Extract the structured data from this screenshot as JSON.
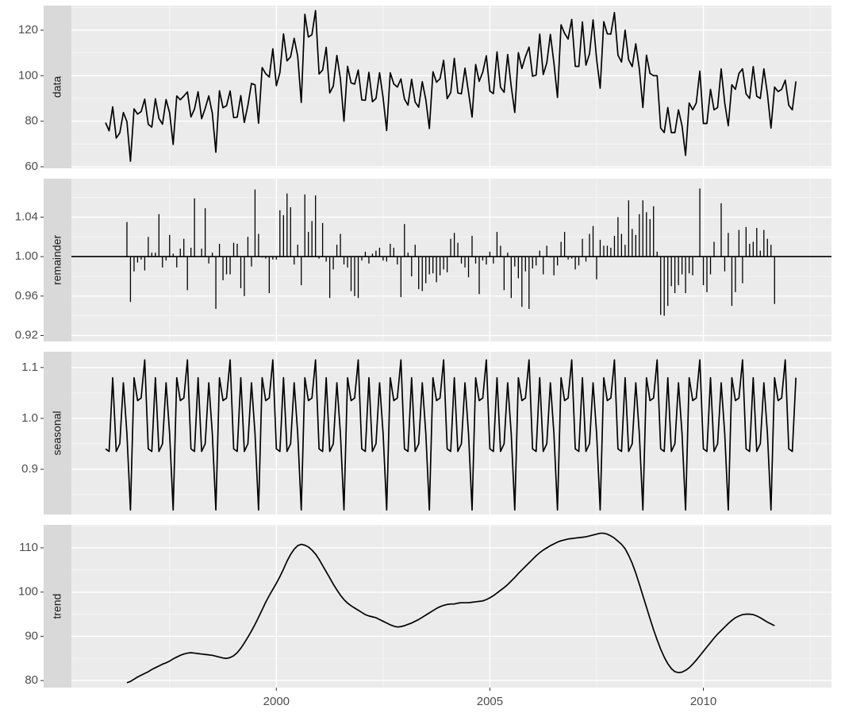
{
  "chart_data": {
    "type": "line",
    "color": "#000000",
    "grid": true,
    "xlim": [
      1995.2,
      2013.0
    ],
    "xticks": [
      2000,
      2005,
      2010
    ],
    "x": [
      1996,
      1996.083,
      1996.167,
      1996.25,
      1996.333,
      1996.417,
      1996.5,
      1996.583,
      1996.667,
      1996.75,
      1996.833,
      1996.917,
      1997,
      1997.083,
      1997.167,
      1997.25,
      1997.333,
      1997.417,
      1997.5,
      1997.583,
      1997.667,
      1997.75,
      1997.833,
      1997.917,
      1998,
      1998.083,
      1998.167,
      1998.25,
      1998.333,
      1998.417,
      1998.5,
      1998.583,
      1998.667,
      1998.75,
      1998.833,
      1998.917,
      1999,
      1999.083,
      1999.167,
      1999.25,
      1999.333,
      1999.417,
      1999.5,
      1999.583,
      1999.667,
      1999.75,
      1999.833,
      1999.917,
      2000,
      2000.083,
      2000.167,
      2000.25,
      2000.333,
      2000.417,
      2000.5,
      2000.583,
      2000.667,
      2000.75,
      2000.833,
      2000.917,
      2001,
      2001.083,
      2001.167,
      2001.25,
      2001.333,
      2001.417,
      2001.5,
      2001.583,
      2001.667,
      2001.75,
      2001.833,
      2001.917,
      2002,
      2002.083,
      2002.167,
      2002.25,
      2002.333,
      2002.417,
      2002.5,
      2002.583,
      2002.667,
      2002.75,
      2002.833,
      2002.917,
      2003,
      2003.083,
      2003.167,
      2003.25,
      2003.333,
      2003.417,
      2003.5,
      2003.583,
      2003.667,
      2003.75,
      2003.833,
      2003.917,
      2004,
      2004.083,
      2004.167,
      2004.25,
      2004.333,
      2004.417,
      2004.5,
      2004.583,
      2004.667,
      2004.75,
      2004.833,
      2004.917,
      2005,
      2005.083,
      2005.167,
      2005.25,
      2005.333,
      2005.417,
      2005.5,
      2005.583,
      2005.667,
      2005.75,
      2005.833,
      2005.917,
      2006,
      2006.083,
      2006.167,
      2006.25,
      2006.333,
      2006.417,
      2006.5,
      2006.583,
      2006.667,
      2006.75,
      2006.833,
      2006.917,
      2007,
      2007.083,
      2007.167,
      2007.25,
      2007.333,
      2007.417,
      2007.5,
      2007.583,
      2007.667,
      2007.75,
      2007.833,
      2007.917,
      2008,
      2008.083,
      2008.167,
      2008.25,
      2008.333,
      2008.417,
      2008.5,
      2008.583,
      2008.667,
      2008.75,
      2008.833,
      2008.917,
      2009,
      2009.083,
      2009.167,
      2009.25,
      2009.333,
      2009.417,
      2009.5,
      2009.583,
      2009.667,
      2009.75,
      2009.833,
      2009.917,
      2010,
      2010.083,
      2010.167,
      2010.25,
      2010.333,
      2010.417,
      2010.5,
      2010.583,
      2010.667,
      2010.75,
      2010.833,
      2010.917,
      2011,
      2011.083,
      2011.167,
      2011.25,
      2011.333,
      2011.417,
      2011.5,
      2011.583,
      2011.667,
      2011.75,
      2011.833,
      2011.917,
      2012,
      2012.083,
      2012.167
    ],
    "facets": [
      {
        "type": "line",
        "title": "data",
        "ylim": [
          59.3,
          130.8
        ],
        "yticks": [
          60,
          80,
          100,
          120
        ],
        "values": [
          79.35,
          75.78,
          86.32,
          72.6,
          74.86,
          83.81,
          79.8,
          62.41,
          85.41,
          83.11,
          84.21,
          89.7,
          78.64,
          77.42,
          89.86,
          81.27,
          78.68,
          89.51,
          83.67,
          69.8,
          91.09,
          89.43,
          91.04,
          92.87,
          81.87,
          85.36,
          92.98,
          81.09,
          85.64,
          91.14,
          83.46,
          66.37,
          93.34,
          85.93,
          86.81,
          93.3,
          81.59,
          81.77,
          91.24,
          79.45,
          86.99,
          96.6,
          96.0,
          79.13,
          103.56,
          100.89,
          99.4,
          111.8,
          95.61,
          101.31,
          118.36,
          106.49,
          108.27,
          116.41,
          108.51,
          88.25,
          126.96,
          116.96,
          118.01,
          128.58,
          100.73,
          102.48,
          112.46,
          92.43,
          95.42,
          108.86,
          98.57,
          79.97,
          104.12,
          96.82,
          96.29,
          102.46,
          89.31,
          89.18,
          101.48,
          88.54,
          89.99,
          101.31,
          90.21,
          75.91,
          101.28,
          96.38,
          95.0,
          98.59,
          89.71,
          87.04,
          98.41,
          88.41,
          86.16,
          97.35,
          89.45,
          76.78,
          101.75,
          97.12,
          98.68,
          106.77,
          89.88,
          92.59,
          107.61,
          92.41,
          92.05,
          103.29,
          92.72,
          81.78,
          104.92,
          97.5,
          101.54,
          108.74,
          93.24,
          92.11,
          110.46,
          94.89,
          92.68,
          109.3,
          95.25,
          83.84,
          110.12,
          103.15,
          108.38,
          112.57,
          99.76,
          100.24,
          118.27,
          100.51,
          105.65,
          118.11,
          105.57,
          90.46,
          122.37,
          118.59,
          116.11,
          124.71,
          104.12,
          104.05,
          123.62,
          104.63,
          109.58,
          124.53,
          107.19,
          94.48,
          123.73,
          118.39,
          118.3,
          127.7,
          109,
          106,
          120,
          107,
          104,
          114,
          103,
          86,
          109,
          101,
          100,
          100,
          77,
          75,
          86,
          75,
          75,
          85,
          78,
          65,
          88,
          85,
          88,
          102,
          79,
          79,
          94,
          85,
          86,
          103,
          88,
          78,
          96,
          94,
          101,
          103,
          92,
          90,
          104,
          91,
          90,
          103,
          92,
          77,
          95,
          93,
          94,
          98,
          87,
          85,
          97.5
        ]
      },
      {
        "type": "bar",
        "title": "remainder",
        "baseline": 1,
        "ylim": [
          0.914,
          1.079
        ],
        "yticks": [
          0.92,
          0.96,
          {
            "value": 1,
            "label": "1.00"
          },
          1.04
        ],
        "values": [
          null,
          null,
          null,
          null,
          null,
          null,
          1.035,
          0.954,
          0.985,
          0.994,
          0.997,
          0.986,
          1.02,
          1.004,
          1.004,
          1.043,
          0.989,
          0.996,
          1.022,
          1.003,
          0.989,
          1.008,
          1.018,
          0.966,
          1.009,
          1.059,
          1.0,
          1.008,
          1.049,
          0.993,
          1.004,
          0.947,
          1.013,
          0.976,
          0.982,
          0.982,
          1.014,
          1.013,
          0.968,
          0.96,
          1.02,
          0.99,
          1.068,
          1.023,
          0.999,
          0.998,
          0.963,
          0.997,
          0.997,
          1.047,
          1.042,
          1.064,
          1.05,
          0.992,
          1.012,
          0.971,
          1.063,
          1.025,
          1.036,
          1.062,
          0.998,
          1.034,
          0.995,
          0.958,
          0.987,
          1.012,
          1.023,
          0.992,
          0.989,
          0.965,
          0.96,
          0.958,
          0.996,
          1.005,
          0.993,
          1.003,
          1.006,
          1.009,
          0.996,
          0.995,
          1.013,
          1.009,
          0.992,
          0.959,
          1.033,
          1.004,
          0.98,
          1.012,
          0.967,
          0.965,
          0.973,
          0.982,
          0.983,
          0.974,
          0.981,
          0.987,
          0.984,
          1.018,
          1.024,
          1.014,
          0.993,
          0.989,
          0.979,
          1.021,
          0.993,
          0.962,
          0.996,
          0.992,
          1.005,
          0.993,
          1.025,
          1.011,
          0.966,
          1.004,
          0.958,
          0.99,
          0.978,
          0.949,
          0.985,
          0.947,
          0.988,
          0.991,
          1.006,
          0.982,
          1.011,
          0.999,
          0.981,
          0.991,
          1.015,
          1.025,
          0.997,
          0.998,
          0.987,
          0.991,
          1.018,
          0.995,
          1.023,
          1.031,
          0.977,
          1.017,
          1.011,
          1.011,
          1.009,
          1.021,
          1.04,
          1.023,
          1.012,
          1.057,
          1.028,
          1.022,
          1.043,
          1.057,
          1.045,
          1.038,
          1.051,
          1.005,
          0.941,
          0.94,
          0.95,
          0.97,
          0.963,
          0.971,
          0.982,
          0.963,
          0.983,
          0.981,
          1.0,
          1.069,
          0.971,
          0.964,
          0.982,
          1.015,
          1.0,
          1.054,
          0.985,
          1.024,
          0.95,
          0.964,
          1.027,
          0.973,
          1.03,
          1.013,
          1.015,
          1.029,
          1.006,
          1.027,
          1.018,
          1.012,
          0.952,
          null,
          null,
          null,
          null,
          null,
          null
        ]
      },
      {
        "type": "line",
        "title": "seasonal",
        "ylim": [
          0.811,
          1.131
        ],
        "yticks": [
          0.9,
          {
            "value": 1,
            "label": "1.0"
          },
          1.1
        ],
        "values": [
          0.94,
          0.935,
          1.08,
          0.935,
          0.95,
          1.07,
          0.97,
          0.82,
          1.08,
          1.035,
          1.04,
          1.115,
          0.94,
          0.935,
          1.08,
          0.935,
          0.95,
          1.07,
          0.97,
          0.82,
          1.08,
          1.035,
          1.04,
          1.115,
          0.94,
          0.935,
          1.08,
          0.935,
          0.95,
          1.07,
          0.97,
          0.82,
          1.08,
          1.035,
          1.04,
          1.115,
          0.94,
          0.935,
          1.08,
          0.935,
          0.95,
          1.07,
          0.97,
          0.82,
          1.08,
          1.035,
          1.04,
          1.115,
          0.94,
          0.935,
          1.08,
          0.935,
          0.95,
          1.07,
          0.97,
          0.82,
          1.08,
          1.035,
          1.04,
          1.115,
          0.94,
          0.935,
          1.08,
          0.935,
          0.95,
          1.07,
          0.97,
          0.82,
          1.08,
          1.035,
          1.04,
          1.115,
          0.94,
          0.935,
          1.08,
          0.935,
          0.95,
          1.07,
          0.97,
          0.82,
          1.08,
          1.035,
          1.04,
          1.115,
          0.94,
          0.935,
          1.08,
          0.935,
          0.95,
          1.07,
          0.97,
          0.82,
          1.08,
          1.035,
          1.04,
          1.115,
          0.94,
          0.935,
          1.08,
          0.935,
          0.95,
          1.07,
          0.97,
          0.82,
          1.08,
          1.035,
          1.04,
          1.115,
          0.94,
          0.935,
          1.08,
          0.935,
          0.95,
          1.07,
          0.97,
          0.82,
          1.08,
          1.035,
          1.04,
          1.115,
          0.94,
          0.935,
          1.08,
          0.935,
          0.95,
          1.07,
          0.97,
          0.82,
          1.08,
          1.035,
          1.04,
          1.115,
          0.94,
          0.935,
          1.08,
          0.935,
          0.95,
          1.07,
          0.97,
          0.82,
          1.08,
          1.035,
          1.04,
          1.115,
          0.94,
          0.935,
          1.08,
          0.935,
          0.95,
          1.07,
          0.97,
          0.82,
          1.08,
          1.035,
          1.04,
          1.115,
          0.94,
          0.935,
          1.08,
          0.935,
          0.95,
          1.07,
          0.97,
          0.82,
          1.08,
          1.035,
          1.04,
          1.115,
          0.94,
          0.935,
          1.08,
          0.935,
          0.95,
          1.07,
          0.97,
          0.82,
          1.08,
          1.035,
          1.04,
          1.115,
          0.94,
          0.935,
          1.08,
          0.935,
          0.95,
          1.07,
          0.97,
          0.82,
          1.08,
          1.035,
          1.04,
          1.115,
          0.94,
          0.935,
          1.08
        ]
      },
      {
        "type": "line",
        "title": "trend",
        "ylim": [
          78.4,
          115.2
        ],
        "yticks": [
          80,
          90,
          100,
          110
        ],
        "values": [
          null,
          null,
          null,
          null,
          null,
          null,
          79.5,
          79.8,
          80.3,
          80.8,
          81.2,
          81.6,
          82.0,
          82.5,
          82.9,
          83.3,
          83.7,
          84.0,
          84.4,
          84.9,
          85.3,
          85.7,
          86.0,
          86.2,
          86.3,
          86.2,
          86.1,
          86.0,
          85.9,
          85.8,
          85.7,
          85.5,
          85.3,
          85.1,
          85.0,
          85.2,
          85.6,
          86.3,
          87.3,
          88.5,
          89.8,
          91.2,
          92.7,
          94.3,
          96.0,
          97.7,
          99.2,
          100.6,
          102.0,
          103.5,
          105.2,
          107.0,
          108.5,
          109.7,
          110.5,
          110.8,
          110.6,
          110.2,
          109.5,
          108.6,
          107.4,
          106.0,
          104.6,
          103.2,
          101.8,
          100.5,
          99.3,
          98.3,
          97.5,
          96.9,
          96.4,
          95.9,
          95.4,
          94.9,
          94.6,
          94.4,
          94.2,
          93.8,
          93.4,
          93.0,
          92.6,
          92.3,
          92.1,
          92.2,
          92.4,
          92.7,
          93.0,
          93.4,
          93.8,
          94.3,
          94.8,
          95.3,
          95.8,
          96.3,
          96.7,
          97.0,
          97.2,
          97.3,
          97.3,
          97.5,
          97.6,
          97.6,
          97.6,
          97.7,
          97.8,
          97.9,
          98.0,
          98.3,
          98.7,
          99.2,
          99.8,
          100.4,
          101.0,
          101.7,
          102.5,
          103.3,
          104.2,
          105.0,
          105.8,
          106.6,
          107.4,
          108.2,
          108.9,
          109.5,
          110.0,
          110.5,
          110.9,
          111.3,
          111.6,
          111.8,
          112.0,
          112.1,
          112.2,
          112.3,
          112.4,
          112.5,
          112.7,
          112.9,
          113.1,
          113.3,
          113.3,
          113.1,
          112.7,
          112.2,
          111.5,
          110.8,
          109.8,
          108.3,
          106.5,
          104.3,
          101.8,
          99.2,
          96.6,
          94.0,
          91.5,
          89.2,
          87.1,
          85.3,
          83.8,
          82.7,
          82.0,
          81.8,
          81.9,
          82.3,
          82.9,
          83.7,
          84.6,
          85.6,
          86.6,
          87.6,
          88.6,
          89.6,
          90.5,
          91.3,
          92.1,
          92.9,
          93.6,
          94.2,
          94.6,
          94.9,
          95.0,
          95.0,
          94.9,
          94.6,
          94.2,
          93.7,
          93.2,
          92.8,
          92.4,
          null,
          null,
          null,
          null,
          null,
          null
        ]
      }
    ]
  }
}
